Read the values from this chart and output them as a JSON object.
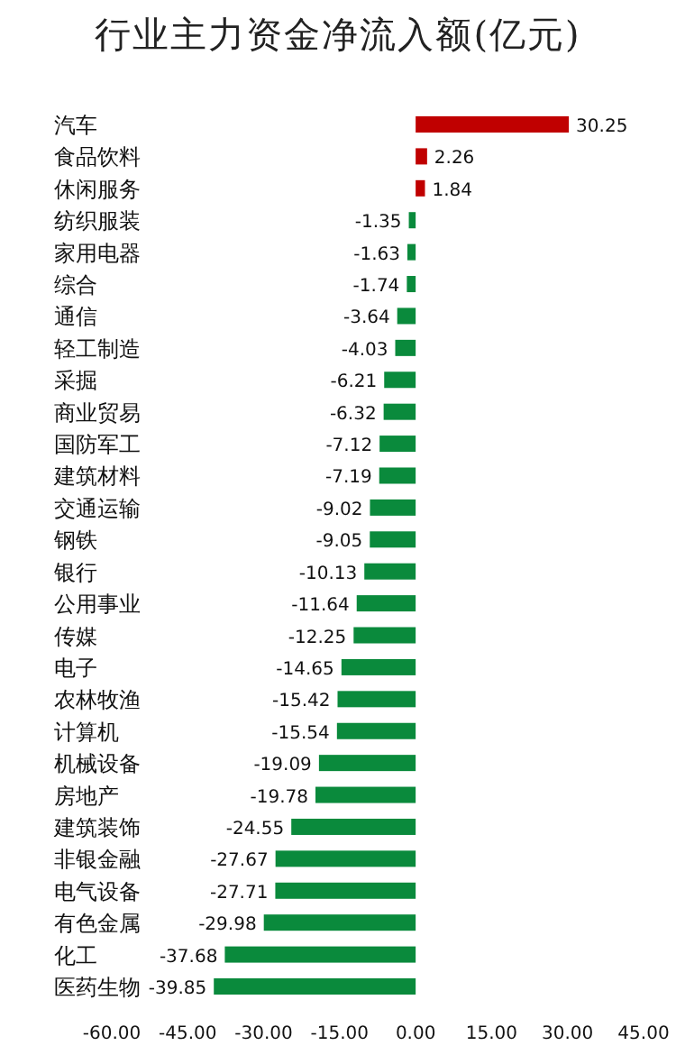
{
  "chart_data": {
    "type": "bar",
    "orientation": "horizontal",
    "title": "行业主力资金净流入额(亿元)",
    "categories": [
      "汽车",
      "食品饮料",
      "休闲服务",
      "纺织服装",
      "家用电器",
      "综合",
      "通信",
      "轻工制造",
      "采掘",
      "商业贸易",
      "国防军工",
      "建筑材料",
      "交通运输",
      "钢铁",
      "银行",
      "公用事业",
      "传媒",
      "电子",
      "农林牧渔",
      "计算机",
      "机械设备",
      "房地产",
      "建筑装饰",
      "非银金融",
      "电气设备",
      "有色金属",
      "化工",
      "医药生物"
    ],
    "values": [
      30.25,
      2.26,
      1.84,
      -1.35,
      -1.63,
      -1.74,
      -3.64,
      -4.03,
      -6.21,
      -6.32,
      -7.12,
      -7.19,
      -9.02,
      -9.05,
      -10.13,
      -11.64,
      -12.25,
      -14.65,
      -15.42,
      -15.54,
      -19.09,
      -19.78,
      -24.55,
      -27.67,
      -27.71,
      -29.98,
      -37.68,
      -39.85
    ],
    "colors": [
      "#c00000",
      "#c00000",
      "#c00000",
      "#0a8a3c",
      "#0a8a3c",
      "#0a8a3c",
      "#0a8a3c",
      "#0a8a3c",
      "#0a8a3c",
      "#0a8a3c",
      "#0a8a3c",
      "#0a8a3c",
      "#0a8a3c",
      "#0a8a3c",
      "#0a8a3c",
      "#0a8a3c",
      "#0a8a3c",
      "#0a8a3c",
      "#0a8a3c",
      "#0a8a3c",
      "#0a8a3c",
      "#0a8a3c",
      "#0a8a3c",
      "#0a8a3c",
      "#0a8a3c",
      "#0a8a3c",
      "#0a8a3c",
      "#0a8a3c"
    ],
    "xlim": [
      -60,
      45
    ],
    "xticks": [
      {
        "value": -60,
        "label": "-60.00"
      },
      {
        "value": -45,
        "label": "-45.00"
      },
      {
        "value": -30,
        "label": "-30.00"
      },
      {
        "value": -15,
        "label": "-15.00"
      },
      {
        "value": 0,
        "label": "0.00"
      },
      {
        "value": 15,
        "label": "15.00"
      },
      {
        "value": 30,
        "label": "30.00"
      },
      {
        "value": 45,
        "label": "45.00"
      }
    ],
    "data_labels": true
  }
}
